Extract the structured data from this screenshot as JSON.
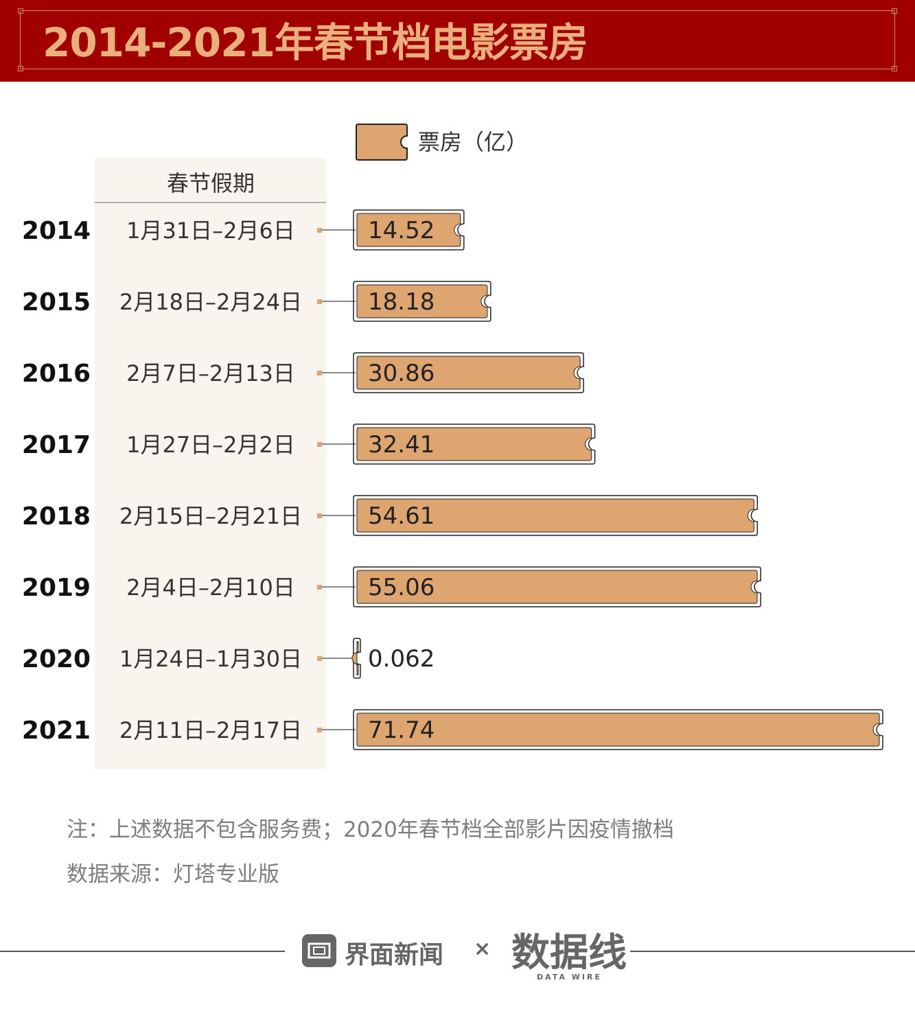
{
  "header": {
    "title": "2014-2021年春节档电影票房"
  },
  "legend": {
    "label": "票房（亿）"
  },
  "table": {
    "column_header": "春节假期"
  },
  "chart_data": {
    "type": "bar",
    "orientation": "horizontal",
    "title": "2014-2021年春节档电影票房",
    "categories": [
      "2014",
      "2015",
      "2016",
      "2017",
      "2018",
      "2019",
      "2020",
      "2021"
    ],
    "holiday_periods": [
      "1月31日–2月6日",
      "2月18日–2月24日",
      "2月7日–2月13日",
      "1月27日–2月2日",
      "2月15日–2月21日",
      "2月4日–2月10日",
      "1月24日–1月30日",
      "2月11日–2月17日"
    ],
    "series": [
      {
        "name": "票房（亿）",
        "values": [
          14.52,
          18.18,
          30.86,
          32.41,
          54.61,
          55.06,
          0.062,
          71.74
        ]
      }
    ],
    "value_labels": [
      "14.52",
      "18.18",
      "30.86",
      "32.41",
      "54.61",
      "55.06",
      "0.062",
      "71.74"
    ],
    "bar_color": "#dfa571",
    "xlim": [
      0,
      71.74
    ],
    "legend_position": "top",
    "grid": false
  },
  "notes": {
    "note": "注：上述数据不包含服务费；2020年春节档全部影片因疫情撤档",
    "source": "数据来源：灯塔专业版"
  },
  "footer": {
    "brand": "界面新闻",
    "separator": "×",
    "logo": "数据线",
    "logo_sub": "DATA WIRE"
  },
  "colors": {
    "header_bg": "#a00000",
    "title": "#e9b07e",
    "column_bg": "#faf4ef",
    "bar": "#dfa571"
  }
}
